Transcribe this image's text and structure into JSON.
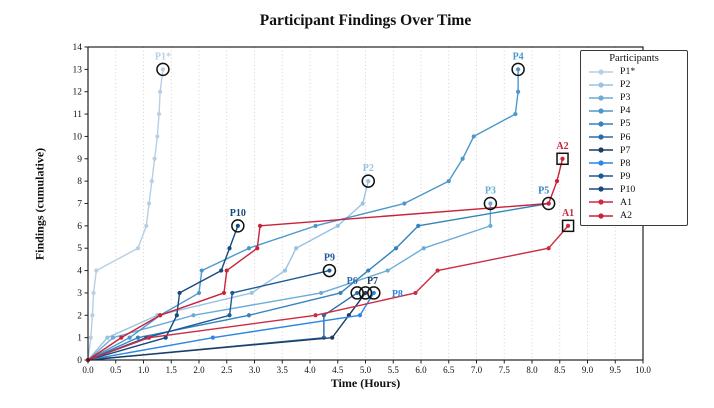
{
  "figure": {
    "title": "Participant Findings Over Time",
    "x_axis": {
      "label": "Time (Hours)",
      "tick_labels": [
        "0.0",
        "0.5",
        "1.0",
        "1.5",
        "2.0",
        "2.5",
        "3.0",
        "3.5",
        "4.0",
        "4.5",
        "5.0",
        "5.5",
        "6.0",
        "6.5",
        "7.0",
        "7.5",
        "8.0",
        "8.5",
        "9.0",
        "9.5",
        "10.0"
      ]
    },
    "y_axis": {
      "label": "Findings (cumulative)",
      "tick_labels": [
        "0",
        "1",
        "2",
        "3",
        "4",
        "5",
        "6",
        "7",
        "8",
        "9",
        "10",
        "11",
        "12",
        "13",
        "14"
      ]
    },
    "legend": {
      "title": "Participants",
      "entries": [
        {
          "name": "P1*",
          "color": "#b7cfe4"
        },
        {
          "name": "P2",
          "color": "#99c3e2"
        },
        {
          "name": "P3",
          "color": "#6cacd6"
        },
        {
          "name": "P4",
          "color": "#4d97cb"
        },
        {
          "name": "P5",
          "color": "#3583bd"
        },
        {
          "name": "P6",
          "color": "#2a6cab"
        },
        {
          "name": "P7",
          "color": "#1c3c61"
        },
        {
          "name": "P8",
          "color": "#2b87e3"
        },
        {
          "name": "P9",
          "color": "#1f5897"
        },
        {
          "name": "P10",
          "color": "#164a7e"
        },
        {
          "name": "A1",
          "color": "#cc2b42"
        },
        {
          "name": "A2",
          "color": "#c92239"
        }
      ]
    }
  },
  "chart_data": {
    "type": "line",
    "title": "Participant Findings Over Time",
    "xlabel": "Time (Hours)",
    "ylabel": "Findings (cumulative)",
    "xlim": [
      0,
      10
    ],
    "ylim": [
      0,
      14
    ],
    "x_tick_step": 0.5,
    "y_tick_step": 1,
    "grid": "vertical-dotted",
    "legend_position": "upper-right",
    "series": [
      {
        "name": "P1*",
        "color": "#b7cfe4",
        "end_marker": "circle",
        "label_offset": [
          0,
          -13
        ],
        "points": [
          [
            0,
            0
          ],
          [
            0.05,
            1
          ],
          [
            0.08,
            2
          ],
          [
            0.1,
            3
          ],
          [
            0.15,
            4
          ],
          [
            0.9,
            5
          ],
          [
            1.05,
            6
          ],
          [
            1.1,
            7
          ],
          [
            1.15,
            8
          ],
          [
            1.2,
            9
          ],
          [
            1.25,
            10
          ],
          [
            1.28,
            11
          ],
          [
            1.3,
            12
          ],
          [
            1.35,
            13
          ]
        ]
      },
      {
        "name": "P2",
        "color": "#99c3e2",
        "end_marker": "circle",
        "label_offset": [
          0,
          -13
        ],
        "points": [
          [
            0,
            0
          ],
          [
            0.35,
            1
          ],
          [
            1.25,
            2
          ],
          [
            2.95,
            3
          ],
          [
            3.55,
            4
          ],
          [
            3.75,
            5
          ],
          [
            4.5,
            6
          ],
          [
            4.95,
            7
          ],
          [
            5.05,
            8
          ]
        ]
      },
      {
        "name": "P3",
        "color": "#6cacd6",
        "end_marker": "circle",
        "label_offset": [
          0,
          -13
        ],
        "points": [
          [
            0,
            0
          ],
          [
            0.45,
            1
          ],
          [
            1.9,
            2
          ],
          [
            4.2,
            3
          ],
          [
            5.4,
            4
          ],
          [
            6.05,
            5
          ],
          [
            7.25,
            6
          ],
          [
            7.25,
            7
          ]
        ]
      },
      {
        "name": "P4",
        "color": "#4d97cb",
        "end_marker": "circle",
        "label_offset": [
          0,
          -13
        ],
        "points": [
          [
            0,
            0
          ],
          [
            0.75,
            1
          ],
          [
            1.3,
            2
          ],
          [
            2.0,
            3
          ],
          [
            2.05,
            4
          ],
          [
            2.9,
            5
          ],
          [
            4.1,
            6
          ],
          [
            5.7,
            7
          ],
          [
            6.5,
            8
          ],
          [
            6.75,
            9
          ],
          [
            6.95,
            10
          ],
          [
            7.7,
            11
          ],
          [
            7.75,
            12
          ],
          [
            7.75,
            13
          ]
        ]
      },
      {
        "name": "P5",
        "color": "#3583bd",
        "end_marker": "circle",
        "label_offset": [
          -5,
          -13
        ],
        "points": [
          [
            0,
            0
          ],
          [
            0.9,
            1
          ],
          [
            2.9,
            2
          ],
          [
            4.55,
            3
          ],
          [
            5.05,
            4
          ],
          [
            5.55,
            5
          ],
          [
            5.95,
            6
          ],
          [
            8.3,
            7
          ]
        ]
      },
      {
        "name": "P6",
        "color": "#2a6cab",
        "end_marker": "circle",
        "label_offset": [
          -5,
          -12
        ],
        "points": [
          [
            0,
            0
          ],
          [
            4.25,
            1
          ],
          [
            4.25,
            2
          ],
          [
            4.85,
            3
          ]
        ]
      },
      {
        "name": "P7",
        "color": "#1c3c61",
        "end_marker": "circle",
        "label_offset": [
          7,
          -12
        ],
        "points": [
          [
            0,
            0
          ],
          [
            4.4,
            1
          ],
          [
            4.7,
            2
          ],
          [
            5.0,
            3
          ]
        ]
      },
      {
        "name": "P8",
        "color": "#2b87e3",
        "end_marker": "circle",
        "label_offset": [
          18,
          1
        ],
        "points": [
          [
            0,
            0
          ],
          [
            2.25,
            1
          ],
          [
            4.9,
            2
          ],
          [
            5.15,
            3
          ]
        ]
      },
      {
        "name": "P9",
        "color": "#1f5897",
        "end_marker": "circle",
        "label_offset": [
          0,
          -13
        ],
        "points": [
          [
            0,
            0
          ],
          [
            1.05,
            1
          ],
          [
            2.55,
            2
          ],
          [
            2.6,
            3
          ],
          [
            4.35,
            4
          ]
        ]
      },
      {
        "name": "P10",
        "color": "#164a7e",
        "end_marker": "circle",
        "label_offset": [
          0,
          -13
        ],
        "points": [
          [
            0,
            0
          ],
          [
            1.4,
            1
          ],
          [
            1.6,
            2
          ],
          [
            1.65,
            3
          ],
          [
            2.4,
            4
          ],
          [
            2.55,
            5
          ],
          [
            2.7,
            6
          ]
        ]
      },
      {
        "name": "A1",
        "color": "#cc2b42",
        "end_marker": "square",
        "label_offset": [
          0,
          -13
        ],
        "points": [
          [
            0,
            0
          ],
          [
            1.1,
            1
          ],
          [
            4.1,
            2
          ],
          [
            5.9,
            3
          ],
          [
            6.3,
            4
          ],
          [
            8.3,
            5
          ],
          [
            8.65,
            6
          ]
        ]
      },
      {
        "name": "A2",
        "color": "#c92239",
        "end_marker": "square",
        "label_offset": [
          0,
          -13
        ],
        "points": [
          [
            0,
            0
          ],
          [
            0.6,
            1
          ],
          [
            1.3,
            2
          ],
          [
            2.45,
            3
          ],
          [
            2.5,
            4
          ],
          [
            3.05,
            5
          ],
          [
            3.1,
            6
          ],
          [
            8.3,
            7
          ],
          [
            8.45,
            8
          ],
          [
            8.55,
            9
          ]
        ]
      }
    ]
  }
}
